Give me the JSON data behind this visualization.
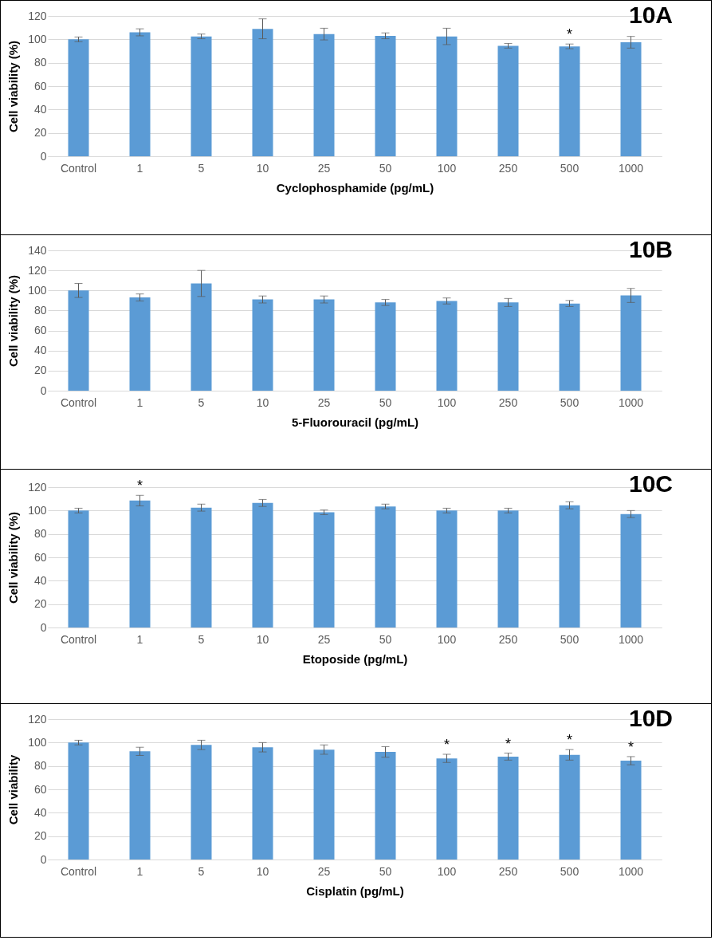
{
  "chart_data": [
    {
      "type": "bar",
      "title": "10A",
      "xlabel": "Cyclophosphamide (pg/mL)",
      "ylabel": "Cell viability (%)",
      "categories": [
        "Control",
        "1",
        "5",
        "10",
        "25",
        "50",
        "100",
        "250",
        "500",
        "1000"
      ],
      "values": [
        100,
        106,
        102.5,
        109,
        104.5,
        103,
        102.5,
        94.5,
        94,
        97.5
      ],
      "errors": [
        2,
        3,
        2,
        8.5,
        5,
        2.5,
        7,
        2,
        2,
        5
      ],
      "color": "#5b9bd5",
      "ylim": [
        0,
        120
      ],
      "yticks": [
        0,
        20,
        40,
        60,
        80,
        100,
        120
      ],
      "grid": "y",
      "annotations": [
        {
          "text": "*",
          "x": "500",
          "y": 96
        }
      ]
    },
    {
      "type": "bar",
      "title": "10B",
      "xlabel": "5-Fluorouracil (pg/mL)",
      "ylabel": "Cell viability (%)",
      "categories": [
        "Control",
        "1",
        "5",
        "10",
        "25",
        "50",
        "100",
        "250",
        "500",
        "1000"
      ],
      "values": [
        100,
        93,
        107,
        91,
        91,
        88,
        89.5,
        88,
        87,
        95
      ],
      "errors": [
        7,
        3.5,
        13,
        3.5,
        3.5,
        3,
        3,
        4,
        3,
        7
      ],
      "color": "#5b9bd5",
      "ylim": [
        0,
        140
      ],
      "yticks": [
        0,
        20,
        40,
        60,
        80,
        100,
        120,
        140
      ],
      "grid": "y"
    },
    {
      "type": "bar",
      "title": "10C",
      "xlabel": "Etoposide (pg/mL)",
      "ylabel": "Cell viability (%)",
      "categories": [
        "Control",
        "1",
        "5",
        "10",
        "25",
        "50",
        "100",
        "250",
        "500",
        "1000"
      ],
      "values": [
        100,
        108.5,
        102.5,
        106.5,
        98.5,
        103.5,
        100,
        100,
        104.5,
        97
      ],
      "errors": [
        2,
        4.5,
        3,
        3,
        2,
        2,
        2,
        2,
        3,
        3
      ],
      "color": "#5b9bd5",
      "ylim": [
        0,
        120
      ],
      "yticks": [
        0,
        20,
        40,
        60,
        80,
        100,
        120
      ],
      "grid": "y",
      "annotations": [
        {
          "text": "*",
          "x": "1",
          "y": 113
        }
      ]
    },
    {
      "type": "bar",
      "title": "10D",
      "xlabel": "Cisplatin (pg/mL)",
      "ylabel": "Cell viability",
      "categories": [
        "Control",
        "1",
        "5",
        "10",
        "25",
        "50",
        "100",
        "250",
        "500",
        "1000"
      ],
      "values": [
        100,
        92.5,
        98,
        96,
        94,
        92,
        86.5,
        88,
        89.5,
        84.5
      ],
      "errors": [
        2,
        3.5,
        4,
        4,
        4,
        4.5,
        3.5,
        3,
        4.5,
        3.5
      ],
      "color": "#5b9bd5",
      "ylim": [
        0,
        120
      ],
      "yticks": [
        0,
        20,
        40,
        60,
        80,
        100,
        120
      ],
      "grid": "y",
      "annotations": [
        {
          "text": "*",
          "x": "100",
          "y": 90
        },
        {
          "text": "*",
          "x": "250",
          "y": 91
        },
        {
          "text": "*",
          "x": "500",
          "y": 94
        },
        {
          "text": "*",
          "x": "1000",
          "y": 88
        }
      ]
    }
  ]
}
